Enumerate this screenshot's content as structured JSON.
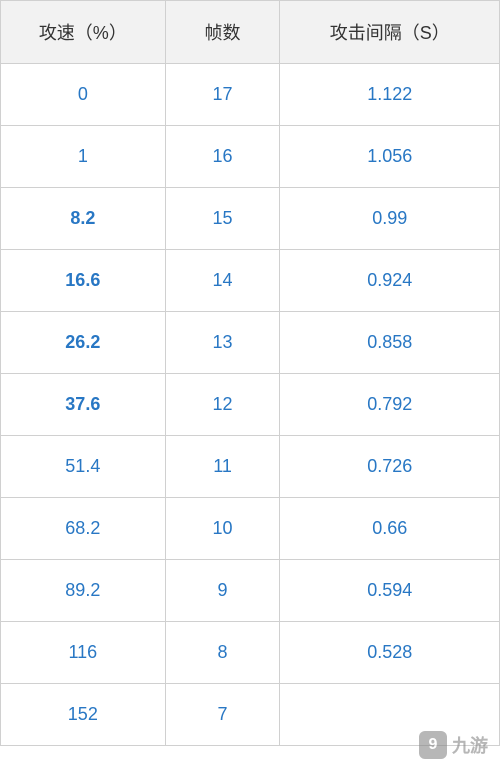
{
  "table": {
    "columns": [
      "攻速（%）",
      "帧数",
      "攻击间隔（S）"
    ],
    "column_widths": [
      "33%",
      "23%",
      "44%"
    ],
    "header_bg": "#f2f2f2",
    "header_color": "#333333",
    "cell_color": "#2877c4",
    "border_color": "#d0d0d0",
    "font_size": 18,
    "rows": [
      {
        "speed": "0",
        "frames": "17",
        "interval": "1.122",
        "bold": false
      },
      {
        "speed": "1",
        "frames": "16",
        "interval": "1.056",
        "bold": false
      },
      {
        "speed": "8.2",
        "frames": "15",
        "interval": "0.99",
        "bold": true
      },
      {
        "speed": "16.6",
        "frames": "14",
        "interval": "0.924",
        "bold": true
      },
      {
        "speed": "26.2",
        "frames": "13",
        "interval": "0.858",
        "bold": true
      },
      {
        "speed": "37.6",
        "frames": "12",
        "interval": "0.792",
        "bold": true
      },
      {
        "speed": "51.4",
        "frames": "11",
        "interval": "0.726",
        "bold": false
      },
      {
        "speed": "68.2",
        "frames": "10",
        "interval": "0.66",
        "bold": false
      },
      {
        "speed": "89.2",
        "frames": "9",
        "interval": "0.594",
        "bold": false
      },
      {
        "speed": "116",
        "frames": "8",
        "interval": "0.528",
        "bold": false
      },
      {
        "speed": "152",
        "frames": "7",
        "interval": "",
        "bold": false
      }
    ]
  },
  "watermark": {
    "icon_text": "9",
    "label": "九游"
  }
}
